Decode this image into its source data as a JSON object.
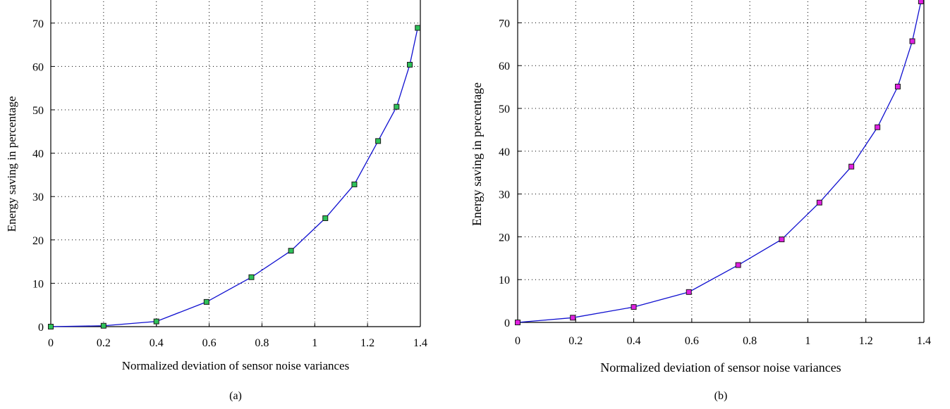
{
  "chart_data": [
    {
      "type": "line",
      "panel_label": "(a)",
      "xlabel": "Normalized deviation of sensor noise variances",
      "ylabel": "Energy saving in percentage",
      "xlim": [
        0,
        1.4
      ],
      "ylim": [
        0,
        75
      ],
      "xticks": [
        0,
        0.2,
        0.4,
        0.6,
        0.8,
        1,
        1.2,
        1.4
      ],
      "xtick_labels": [
        "0",
        "0.2",
        "0.4",
        "0.6",
        "0.8",
        "1",
        "1.2",
        "1.4"
      ],
      "yticks": [
        0,
        10,
        20,
        30,
        40,
        50,
        60,
        70
      ],
      "ytick_labels": [
        "0",
        "10",
        "20",
        "30",
        "40",
        "50",
        "60",
        "70"
      ],
      "grid": "dotted",
      "series": [
        {
          "line_color": "#1010d0",
          "marker_color": "#2ec25a",
          "x": [
            0,
            0.2,
            0.4,
            0.59,
            0.76,
            0.91,
            1.04,
            1.15,
            1.24,
            1.31,
            1.36,
            1.39
          ],
          "y": [
            0,
            0.2,
            1.2,
            5.7,
            11.4,
            17.5,
            25,
            32.8,
            42.8,
            50.7,
            60.4,
            68.9
          ]
        }
      ]
    },
    {
      "type": "line",
      "panel_label": "(b)",
      "xlabel": "Normalized deviation of sensor noise variances",
      "ylabel": "Energy saving in percentage",
      "xlim": [
        0,
        1.4
      ],
      "ylim": [
        0,
        75
      ],
      "xticks": [
        0,
        0.2,
        0.4,
        0.6,
        0.8,
        1,
        1.2,
        1.4
      ],
      "xtick_labels": [
        "0",
        "0.2",
        "0.4",
        "0.6",
        "0.8",
        "1",
        "1.2",
        "1.4"
      ],
      "yticks": [
        0,
        10,
        20,
        30,
        40,
        50,
        60,
        70
      ],
      "ytick_labels": [
        "0",
        "10",
        "20",
        "30",
        "40",
        "50",
        "60",
        "70"
      ],
      "grid": "dotted",
      "series": [
        {
          "line_color": "#1010d0",
          "marker_color": "#e020e0",
          "x": [
            0,
            0.19,
            0.4,
            0.59,
            0.76,
            0.91,
            1.04,
            1.15,
            1.24,
            1.31,
            1.36,
            1.39
          ],
          "y": [
            0,
            1.1,
            3.6,
            7.1,
            13.4,
            19.4,
            28,
            36.4,
            45.6,
            55.1,
            65.7,
            75
          ]
        }
      ]
    }
  ]
}
